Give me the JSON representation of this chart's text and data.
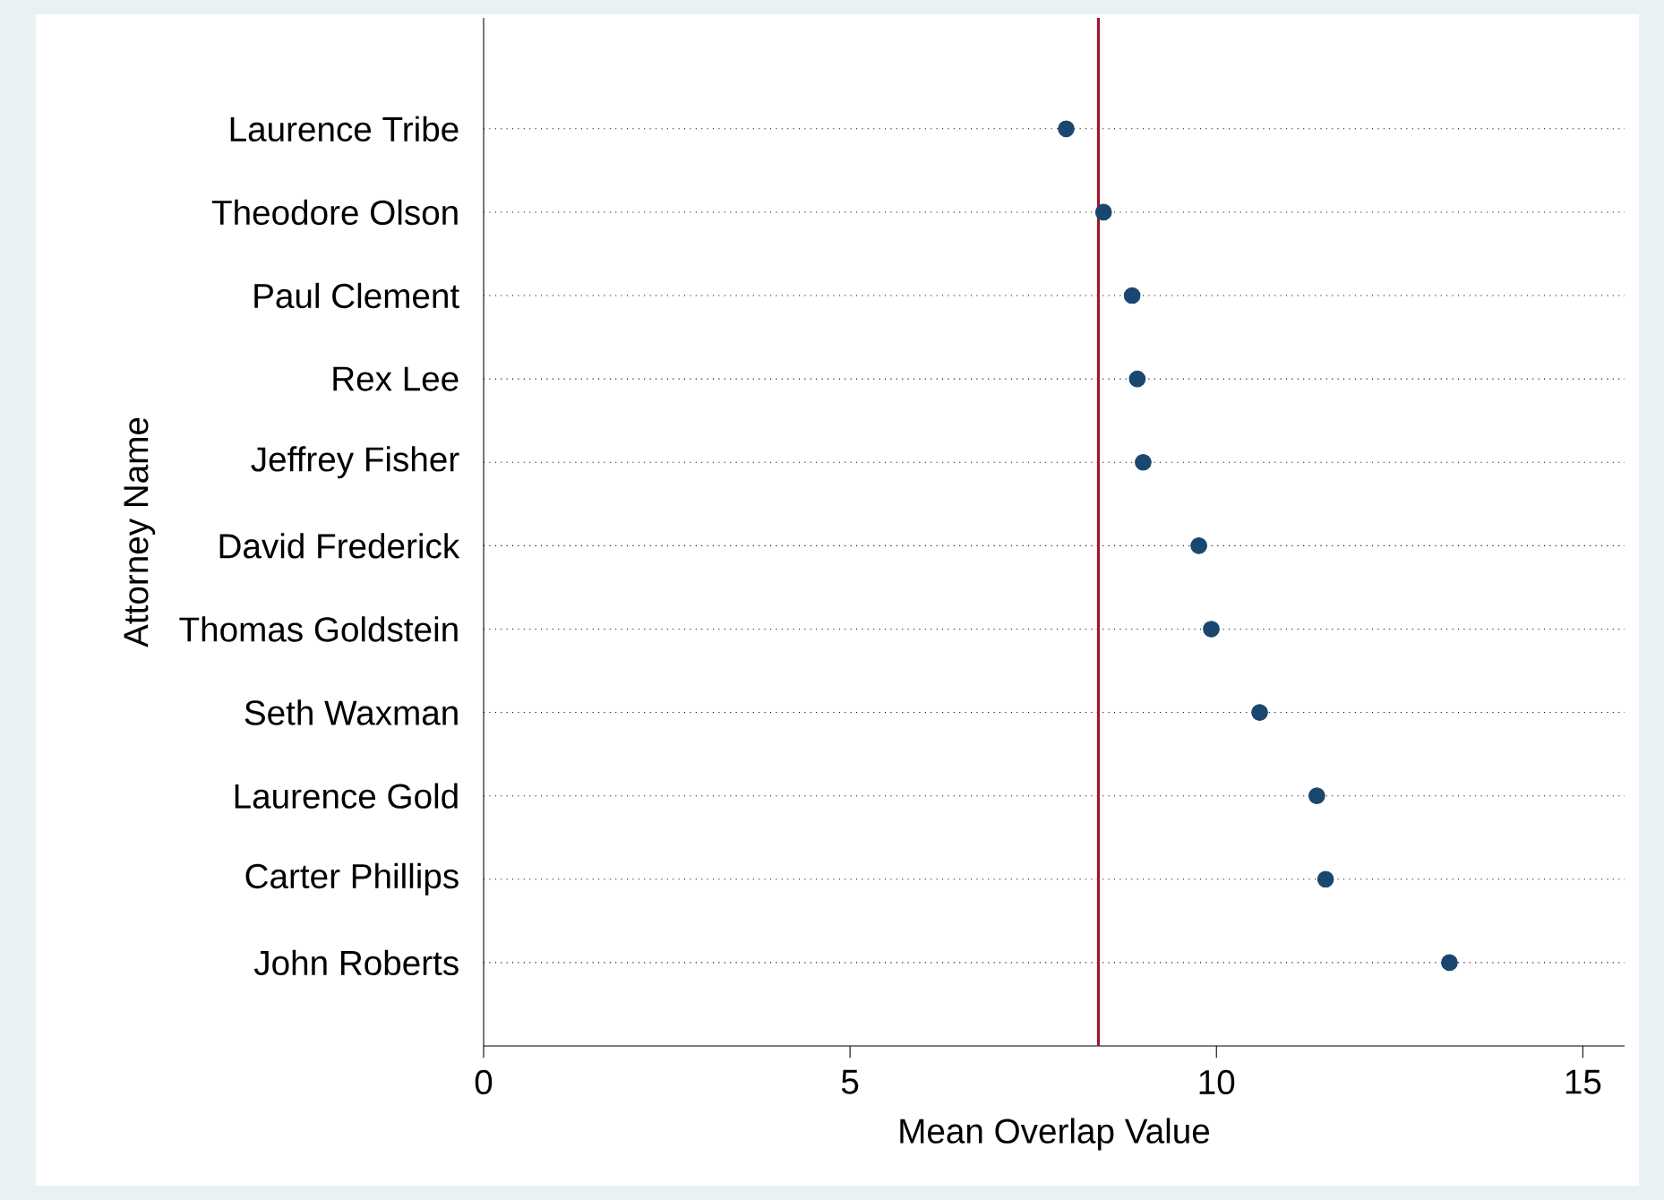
{
  "chart_data": {
    "type": "scatter",
    "orientation": "horizontal",
    "xlabel": "Mean Overlap Value",
    "ylabel": "Attorney Name",
    "categories": [
      "Laurence Tribe",
      "Theodore Olson",
      "Paul Clement",
      "Rex Lee",
      "Jeffrey Fisher",
      "David Frederick",
      "Thomas Goldstein",
      "Seth Waxman",
      "Laurence Gold",
      "Carter Phillips",
      "John Roberts"
    ],
    "values": [
      7.95,
      8.46,
      8.85,
      8.92,
      9.0,
      9.76,
      9.93,
      10.59,
      11.37,
      11.49,
      13.18
    ],
    "color": "#1a476f",
    "marker": "circle",
    "grid": "y",
    "xlim": [
      0,
      15.57
    ],
    "xticks": [
      0,
      5,
      10,
      15
    ],
    "ref_lines": [
      {
        "axis": "x",
        "value": 8.39,
        "color": "#a0152d"
      }
    ]
  }
}
